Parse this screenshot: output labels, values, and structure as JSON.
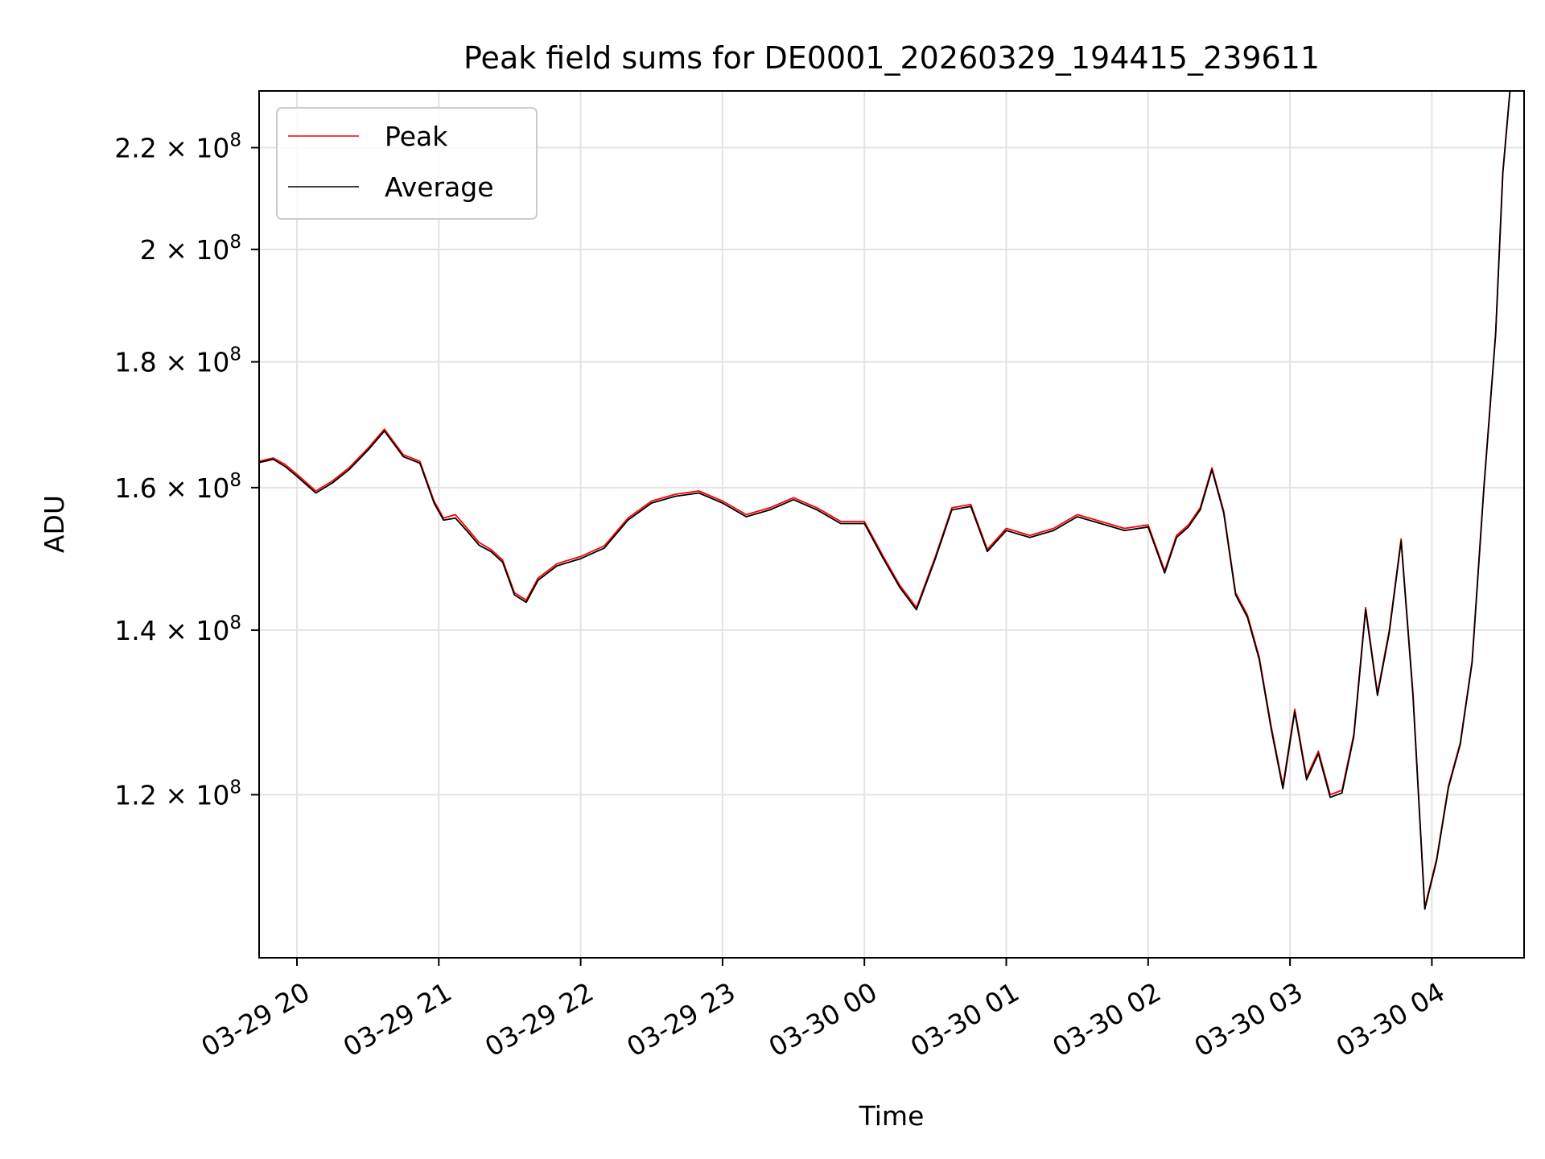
{
  "chart_data": {
    "type": "line",
    "title": "Peak field sums for DE0001_20260329_194415_239611",
    "xlabel": "Time",
    "ylabel": "ADU",
    "y_scale": "log",
    "ylim": [
      103000000,
      232000000
    ],
    "xlim": [
      "03-29 19:44",
      "03-30 04:39"
    ],
    "grid": true,
    "legend": "top-left",
    "x_ticks": [
      {
        "t": "03-29 20:00",
        "label": "03-29 20"
      },
      {
        "t": "03-29 21:00",
        "label": "03-29 21"
      },
      {
        "t": "03-29 22:00",
        "label": "03-29 22"
      },
      {
        "t": "03-29 23:00",
        "label": "03-29 23"
      },
      {
        "t": "03-30 00:00",
        "label": "03-30 00"
      },
      {
        "t": "03-30 01:00",
        "label": "03-30 01"
      },
      {
        "t": "03-30 02:00",
        "label": "03-30 02"
      },
      {
        "t": "03-30 03:00",
        "label": "03-30 03"
      },
      {
        "t": "03-30 04:00",
        "label": "03-30 04"
      }
    ],
    "y_ticks": [
      {
        "value": 120000000,
        "mantissa": "1.2",
        "exp": "8"
      },
      {
        "value": 140000000,
        "mantissa": "1.4",
        "exp": "8"
      },
      {
        "value": 160000000,
        "mantissa": "1.6",
        "exp": "8"
      },
      {
        "value": 180000000,
        "mantissa": "1.8",
        "exp": "8"
      },
      {
        "value": 200000000,
        "mantissa": "2",
        "exp": "8"
      },
      {
        "value": 220000000,
        "mantissa": "2.2",
        "exp": "8"
      }
    ],
    "x": [
      "03-29 19:44",
      "03-29 19:50",
      "03-29 19:55",
      "03-29 20:00",
      "03-29 20:08",
      "03-29 20:15",
      "03-29 20:22",
      "03-29 20:30",
      "03-29 20:37",
      "03-29 20:45",
      "03-29 20:52",
      "03-29 20:58",
      "03-29 21:02",
      "03-29 21:07",
      "03-29 21:12",
      "03-29 21:17",
      "03-29 21:22",
      "03-29 21:27",
      "03-29 21:32",
      "03-29 21:37",
      "03-29 21:42",
      "03-29 21:50",
      "03-29 22:00",
      "03-29 22:10",
      "03-29 22:20",
      "03-29 22:30",
      "03-29 22:40",
      "03-29 22:50",
      "03-29 23:00",
      "03-29 23:10",
      "03-29 23:20",
      "03-29 23:30",
      "03-29 23:40",
      "03-29 23:50",
      "03-30 00:00",
      "03-30 00:08",
      "03-30 00:15",
      "03-30 00:22",
      "03-30 00:30",
      "03-30 00:37",
      "03-30 00:45",
      "03-30 00:52",
      "03-30 01:00",
      "03-30 01:10",
      "03-30 01:20",
      "03-30 01:30",
      "03-30 01:40",
      "03-30 01:50",
      "03-30 02:00",
      "03-30 02:07",
      "03-30 02:12",
      "03-30 02:17",
      "03-30 02:22",
      "03-30 02:27",
      "03-30 02:32",
      "03-30 02:37",
      "03-30 02:42",
      "03-30 02:47",
      "03-30 02:52",
      "03-30 02:57",
      "03-30 03:02",
      "03-30 03:07",
      "03-30 03:12",
      "03-30 03:17",
      "03-30 03:22",
      "03-30 03:27",
      "03-30 03:32",
      "03-30 03:37",
      "03-30 03:42",
      "03-30 03:47",
      "03-30 03:52",
      "03-30 03:57",
      "03-30 04:02",
      "03-30 04:07",
      "03-30 04:12",
      "03-30 04:17",
      "03-30 04:22",
      "03-30 04:27",
      "03-30 04:30",
      "03-30 04:33"
    ],
    "series": [
      {
        "name": "Peak",
        "color": "#ff0000",
        "values": [
          164000000,
          164500000,
          163500000,
          162000000,
          159500000,
          161000000,
          163000000,
          166000000,
          169000000,
          165000000,
          164000000,
          158000000,
          155500000,
          156000000,
          154000000,
          152000000,
          151000000,
          149500000,
          145000000,
          144000000,
          147000000,
          149000000,
          150000000,
          151500000,
          155500000,
          158000000,
          159000000,
          159500000,
          158000000,
          156000000,
          157000000,
          158500000,
          157000000,
          155000000,
          155000000,
          150000000,
          146000000,
          143000000,
          150000000,
          157000000,
          157500000,
          151000000,
          154000000,
          153000000,
          154000000,
          156000000,
          155000000,
          154000000,
          154500000,
          148000000,
          153000000,
          154500000,
          157000000,
          163000000,
          156500000,
          145000000,
          142000000,
          136500000,
          128000000,
          121000000,
          130000000,
          122000000,
          125000000,
          120000000,
          120500000,
          127000000,
          143000000,
          132000000,
          140000000,
          152500000,
          132000000,
          108000000,
          113000000,
          121000000,
          126000000,
          136000000,
          160000000,
          185000000,
          215000000,
          232000000
        ]
      },
      {
        "name": "Average",
        "color": "#000000",
        "values": [
          163800000,
          164300000,
          163200000,
          161700000,
          159200000,
          160700000,
          162700000,
          165700000,
          168700000,
          164700000,
          163700000,
          157700000,
          155200000,
          155500000,
          153600000,
          151600000,
          150700000,
          149200000,
          144700000,
          143700000,
          146700000,
          148700000,
          149700000,
          151200000,
          155200000,
          157700000,
          158700000,
          159200000,
          157700000,
          155700000,
          156700000,
          158200000,
          156700000,
          154700000,
          154700000,
          149700000,
          145700000,
          142700000,
          149700000,
          156700000,
          157200000,
          150700000,
          153700000,
          152700000,
          153700000,
          155700000,
          154700000,
          153700000,
          154200000,
          147700000,
          152700000,
          154200000,
          156700000,
          162700000,
          156200000,
          144700000,
          141700000,
          136200000,
          127700000,
          120700000,
          129700000,
          121700000,
          124700000,
          119700000,
          120200000,
          126700000,
          142700000,
          131700000,
          139700000,
          152200000,
          131700000,
          107800000,
          112800000,
          120800000,
          125800000,
          135800000,
          159800000,
          184800000,
          214800000,
          231800000
        ]
      }
    ]
  }
}
